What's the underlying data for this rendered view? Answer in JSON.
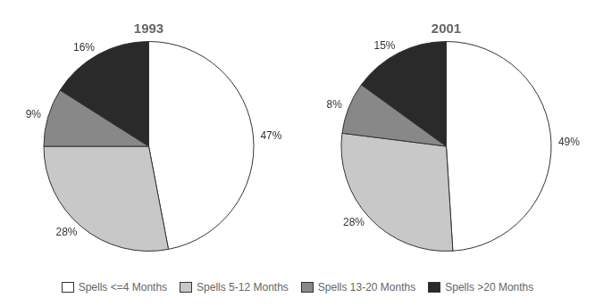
{
  "chart_data": [
    {
      "type": "pie",
      "title": "1993",
      "categories": [
        "Spells <=4 Months",
        "Spells 5-12 Months",
        "Spells 13-20 Months",
        "Spells >20 Months"
      ],
      "values": [
        47,
        28,
        9,
        16
      ],
      "value_labels": [
        "47%",
        "28%",
        "9%",
        "16%"
      ],
      "colors": [
        "#ffffff",
        "#c8c8c8",
        "#888888",
        "#2a2a2a"
      ],
      "data_labels": true,
      "legend": "bottom"
    },
    {
      "type": "pie",
      "title": "2001",
      "categories": [
        "Spells <=4 Months",
        "Spells 5-12 Months",
        "Spells 13-20 Months",
        "Spells >20 Months"
      ],
      "values": [
        49,
        28,
        8,
        15
      ],
      "value_labels": [
        "49%",
        "28%",
        "8%",
        "15%"
      ],
      "colors": [
        "#ffffff",
        "#c8c8c8",
        "#888888",
        "#2a2a2a"
      ],
      "data_labels": true,
      "legend": "bottom"
    }
  ]
}
